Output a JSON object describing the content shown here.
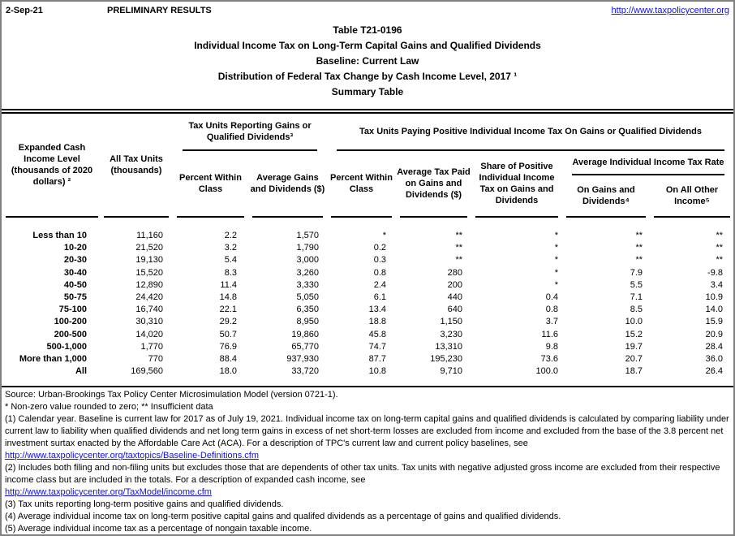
{
  "header": {
    "date": "2-Sep-21",
    "status": "PRELIMINARY RESULTS",
    "link": "http://www.taxpolicycenter.org"
  },
  "title": {
    "lines": [
      "Table T21-0196",
      "Individual Income Tax on Long-Term Capital Gains and Qualified Dividends",
      "Baseline: Current Law",
      "Distribution of Federal Tax Change by Cash Income Level, 2017 ¹",
      "Summary Table"
    ]
  },
  "table": {
    "headers": {
      "income_level": "Expanded Cash Income Level (thousands of 2020 dollars) ²",
      "all_tax_units": "All Tax Units (thousands)",
      "group_reporting": "Tax Units Reporting Gains or Qualified Dividends³",
      "group_paying": "Tax Units Paying Positive Individual Income Tax On Gains or Qualified Dividends",
      "percent_within_class_reporting": "Percent Within Class",
      "avg_gains_dividends": "Average Gains and Dividends ($)",
      "percent_within_class_paying": "Percent Within Class",
      "avg_tax_paid": "Average Tax Paid on Gains and Dividends ($)",
      "share_positive": "Share of Positive Individual Income Tax on Gains and Dividends",
      "group_avg_rate": "Average Individual Income Tax Rate",
      "on_gains_dividends": "On Gains and Dividends⁴",
      "on_all_other_income": "On All Other Income⁵"
    },
    "rows": [
      [
        "Less than 10",
        "11,160",
        "2.2",
        "1,570",
        "*",
        "**",
        "*",
        "**",
        "**"
      ],
      [
        "10-20",
        "21,520",
        "3.2",
        "1,790",
        "0.2",
        "**",
        "*",
        "**",
        "**"
      ],
      [
        "20-30",
        "19,130",
        "5.4",
        "3,000",
        "0.3",
        "**",
        "*",
        "**",
        "**"
      ],
      [
        "30-40",
        "15,520",
        "8.3",
        "3,260",
        "0.8",
        "280",
        "*",
        "7.9",
        "-9.8"
      ],
      [
        "40-50",
        "12,890",
        "11.4",
        "3,330",
        "2.4",
        "200",
        "*",
        "5.5",
        "3.4"
      ],
      [
        "50-75",
        "24,420",
        "14.8",
        "5,050",
        "6.1",
        "440",
        "0.4",
        "7.1",
        "10.9"
      ],
      [
        "75-100",
        "16,740",
        "22.1",
        "6,350",
        "13.4",
        "640",
        "0.8",
        "8.5",
        "14.0"
      ],
      [
        "100-200",
        "30,310",
        "29.2",
        "8,950",
        "18.8",
        "1,150",
        "3.7",
        "10.0",
        "15.9"
      ],
      [
        "200-500",
        "14,020",
        "50.7",
        "19,860",
        "45.8",
        "3,230",
        "11.6",
        "15.2",
        "20.9"
      ],
      [
        "500-1,000",
        "1,770",
        "76.9",
        "65,770",
        "74.7",
        "13,310",
        "9.8",
        "19.7",
        "28.4"
      ],
      [
        "More than 1,000",
        "770",
        "88.4",
        "937,930",
        "87.7",
        "195,230",
        "73.6",
        "20.7",
        "36.0"
      ],
      [
        "All",
        "169,560",
        "18.0",
        "33,720",
        "10.8",
        "9,710",
        "100.0",
        "18.7",
        "26.4"
      ]
    ]
  },
  "footnotes": {
    "items": [
      {
        "text": "Source: Urban-Brookings Tax Policy Center Microsimulation Model (version 0721-1).",
        "is_link": false
      },
      {
        "text": "* Non-zero value rounded to zero; ** Insufficient data",
        "is_link": false
      },
      {
        "text": "(1) Calendar year. Baseline is current law for 2017 as of July 19, 2021. Individual income tax on long-term capital gains and qualified dividends is calculated by comparing liability under current law to liability when qualified dividends and net long term gains in excess of net short-term losses are excluded from income and excluded from the base of the 3.8 percent net investment surtax enacted by the Affordable Care Act (ACA). For a description of TPC's current law and current policy baselines, see",
        "is_link": false
      },
      {
        "text": "http://www.taxpolicycenter.org/taxtopics/Baseline-Definitions.cfm",
        "is_link": true
      },
      {
        "text": "(2) Includes both filing and non-filing units but excludes those that are dependents of other tax units. Tax units with negative adjusted gross income are excluded from their respective income class but are included in the totals. For a description of expanded cash income, see",
        "is_link": false
      },
      {
        "text": "http://www.taxpolicycenter.org/TaxModel/income.cfm",
        "is_link": true
      },
      {
        "text": "(3) Tax units reporting long-term positive gains and qualified dividends.",
        "is_link": false
      },
      {
        "text": "(4) Average individual income tax on long-term positive capital gains and qualifed dividends as a percentage of gains and qualified dividends.",
        "is_link": false
      },
      {
        "text": "(5) Average individual income tax as a percentage of nongain taxable income.",
        "is_link": false
      }
    ]
  },
  "colors": {
    "link_blue": "#0f0fe8",
    "outer_border_gray": "#808080",
    "rule_black": "#000000"
  }
}
